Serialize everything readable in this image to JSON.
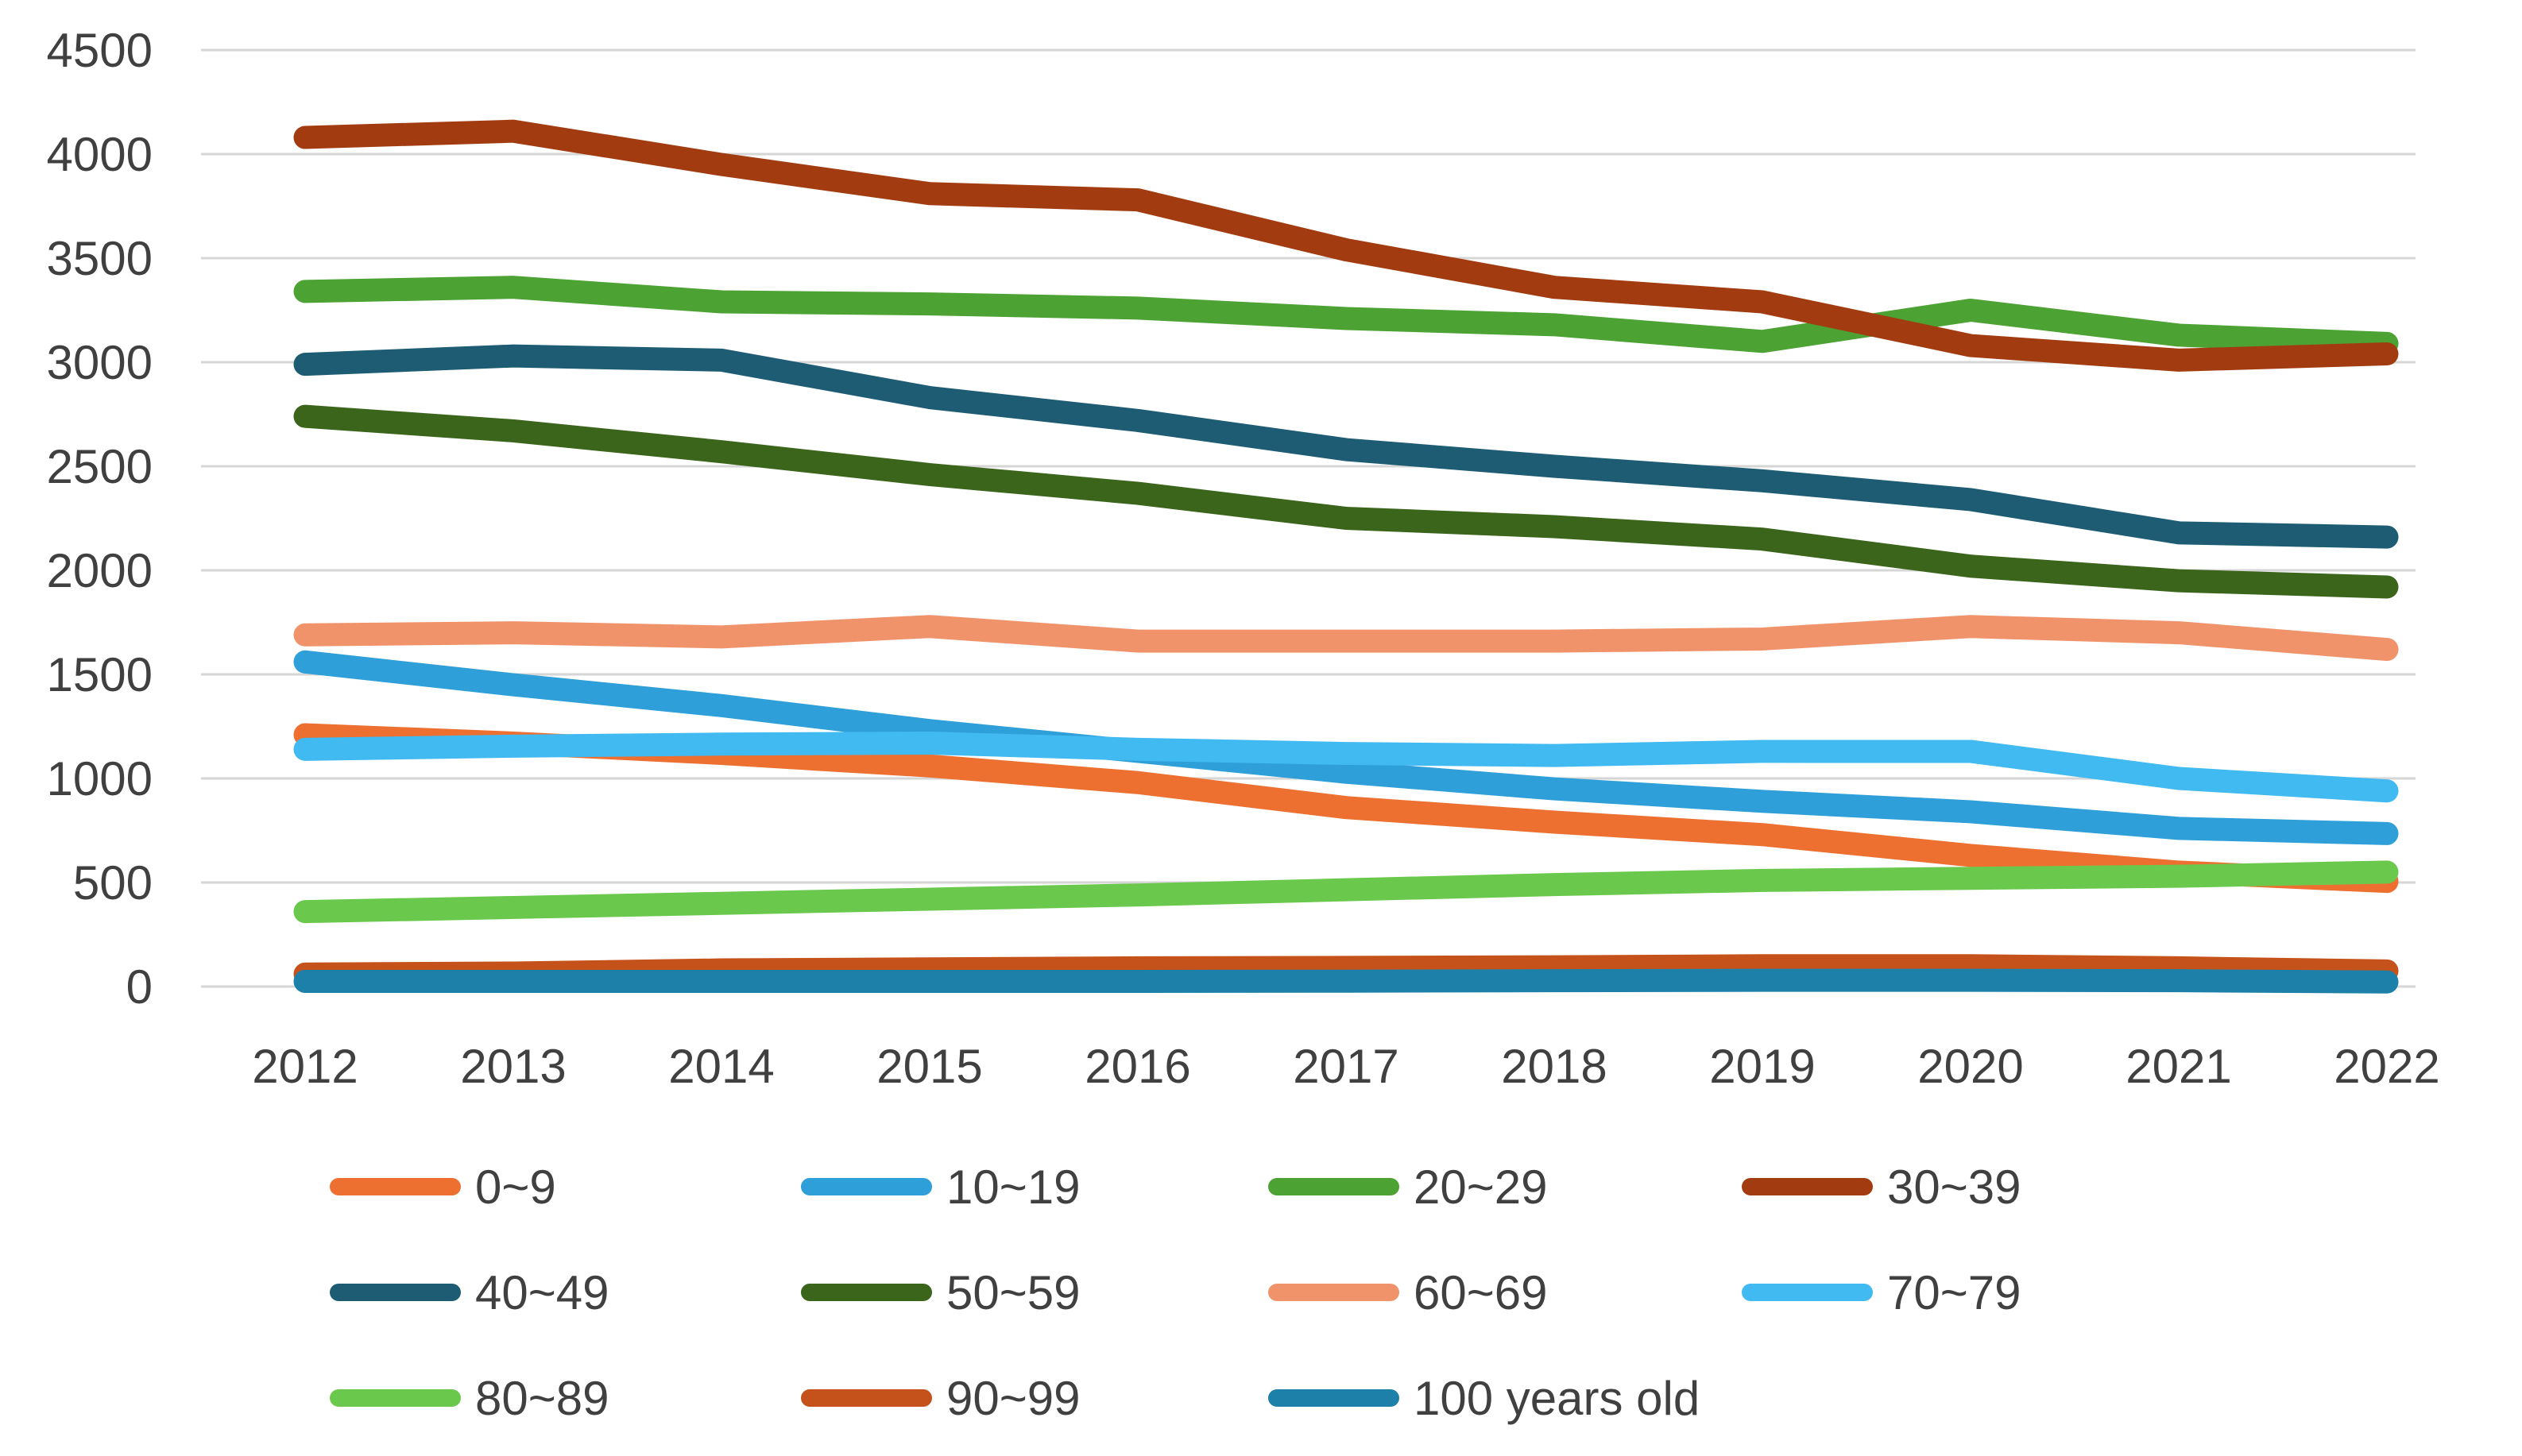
{
  "chart_data": {
    "type": "line",
    "title": "",
    "xlabel": "",
    "ylabel": "",
    "categories": [
      "2012",
      "2013",
      "2014",
      "2015",
      "2016",
      "2017",
      "2018",
      "2019",
      "2020",
      "2021",
      "2022"
    ],
    "y_tick_labels": [
      "0",
      "500",
      "1000",
      "1500",
      "2000",
      "2500",
      "3000",
      "3500",
      "4000",
      "4500"
    ],
    "ylim": [
      0,
      4500
    ],
    "y_tick_step": 500,
    "grid": true,
    "legend_position": "bottom",
    "series": [
      {
        "name": "0~9",
        "color": "#ED7031",
        "values": [
          1210,
          1170,
          1120,
          1060,
          980,
          860,
          790,
          730,
          630,
          550,
          505
        ]
      },
      {
        "name": "10~19",
        "color": "#2E9FD8",
        "values": [
          1560,
          1450,
          1350,
          1230,
          1130,
          1030,
          950,
          890,
          840,
          760,
          735
        ]
      },
      {
        "name": "20~29",
        "color": "#4CA232",
        "values": [
          3340,
          3360,
          3290,
          3280,
          3260,
          3210,
          3180,
          3100,
          3250,
          3130,
          3090
        ]
      },
      {
        "name": "30~39",
        "color": "#A23C10",
        "values": [
          4080,
          4110,
          3950,
          3810,
          3780,
          3540,
          3360,
          3290,
          3080,
          3010,
          3040
        ]
      },
      {
        "name": "40~49",
        "color": "#1E5C73",
        "values": [
          2990,
          3030,
          3010,
          2830,
          2720,
          2580,
          2500,
          2430,
          2340,
          2180,
          2160
        ]
      },
      {
        "name": "50~59",
        "color": "#3B651B",
        "values": [
          2740,
          2670,
          2570,
          2460,
          2370,
          2250,
          2210,
          2150,
          2020,
          1950,
          1920
        ]
      },
      {
        "name": "60~69",
        "color": "#F0936B",
        "values": [
          1690,
          1700,
          1680,
          1730,
          1660,
          1660,
          1660,
          1670,
          1730,
          1700,
          1620
        ]
      },
      {
        "name": "70~79",
        "color": "#41B9F1",
        "values": [
          1140,
          1155,
          1165,
          1170,
          1140,
          1120,
          1110,
          1130,
          1130,
          1000,
          940
        ]
      },
      {
        "name": "80~89",
        "color": "#6AC94C",
        "values": [
          360,
          380,
          400,
          420,
          440,
          465,
          490,
          510,
          520,
          530,
          550
        ]
      },
      {
        "name": "90~99",
        "color": "#C5521A",
        "values": [
          60,
          65,
          80,
          85,
          90,
          92,
          95,
          100,
          100,
          90,
          75
        ]
      },
      {
        "name": "100 years old",
        "color": "#1C80A8",
        "values": [
          25,
          25,
          25,
          25,
          25,
          26,
          28,
          30,
          30,
          28,
          22
        ]
      }
    ],
    "colors": {
      "axis_text": "#404040",
      "gridline": "#D6D6D6",
      "background": "#FFFFFF"
    }
  }
}
